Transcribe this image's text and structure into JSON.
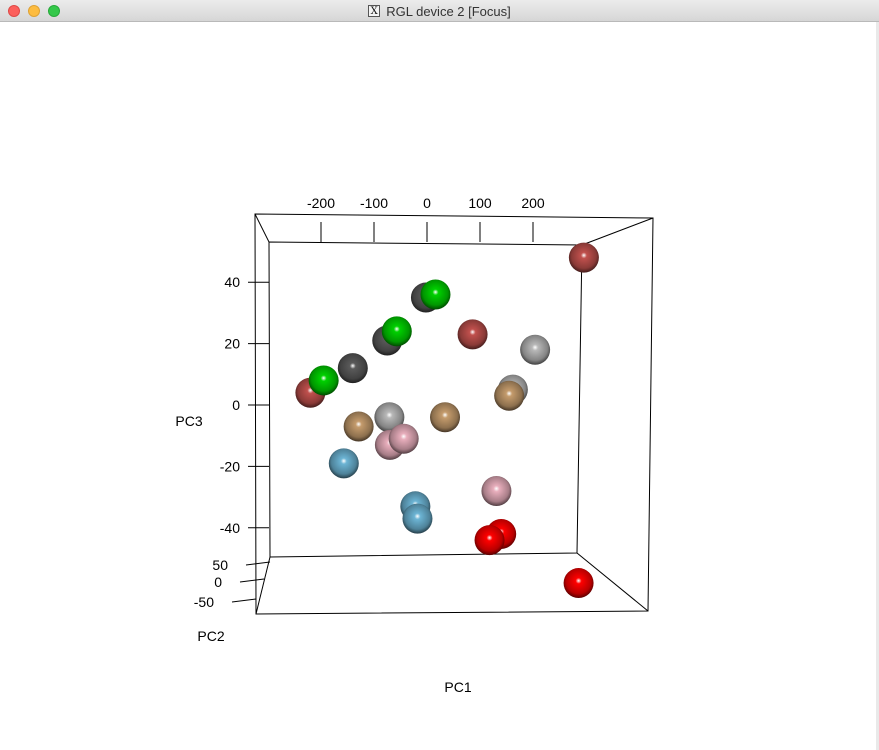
{
  "window": {
    "title": "RGL device 2 [Focus]",
    "title_icon": "x11-icon"
  },
  "chart_data": {
    "type": "scatter",
    "dimensions": 3,
    "xlabel": "PC1",
    "ylabel": "PC2",
    "zlabel": "PC3",
    "x_ticks": [
      "-200",
      "-100",
      "0",
      "100",
      "200"
    ],
    "y_ticks": [
      "50",
      "0",
      "-50"
    ],
    "z_ticks": [
      "40",
      "20",
      "0",
      "-20",
      "-40"
    ],
    "point_style": "shaded spheres",
    "series": [
      {
        "color": "#c0504d",
        "points": [
          {
            "x": 296,
            "z": 48
          },
          {
            "x": 86,
            "z": 23
          },
          {
            "x": -220,
            "z": 4
          }
        ]
      },
      {
        "color": "#5a5a5a",
        "points": [
          {
            "x": -2,
            "z": 35
          },
          {
            "x": -75,
            "z": 21
          },
          {
            "x": -140,
            "z": 12
          }
        ]
      },
      {
        "color": "#00d000",
        "points": [
          {
            "x": 16,
            "z": 36
          },
          {
            "x": -57,
            "z": 24
          },
          {
            "x": -195,
            "z": 8
          }
        ]
      },
      {
        "color": "#b8b8b8",
        "points": [
          {
            "x": 204,
            "z": 18
          },
          {
            "x": 162,
            "z": 5
          },
          {
            "x": -71,
            "z": -4
          }
        ]
      },
      {
        "color": "#c49b6c",
        "points": [
          {
            "x": 155,
            "z": 3
          },
          {
            "x": -129,
            "z": -7
          },
          {
            "x": 34,
            "z": -4
          }
        ]
      },
      {
        "color": "#e8aebc",
        "points": [
          {
            "x": -70,
            "z": -13
          },
          {
            "x": -44,
            "z": -11
          },
          {
            "x": 131,
            "z": -28
          }
        ]
      },
      {
        "color": "#6cb4d4",
        "points": [
          {
            "x": -157,
            "z": -19
          },
          {
            "x": -22,
            "z": -33
          },
          {
            "x": -18,
            "z": -37
          }
        ]
      },
      {
        "color": "#ff0000",
        "points": [
          {
            "x": 140,
            "z": -42
          },
          {
            "x": 118,
            "z": -44
          },
          {
            "x": 286,
            "z": -58
          }
        ]
      }
    ]
  }
}
